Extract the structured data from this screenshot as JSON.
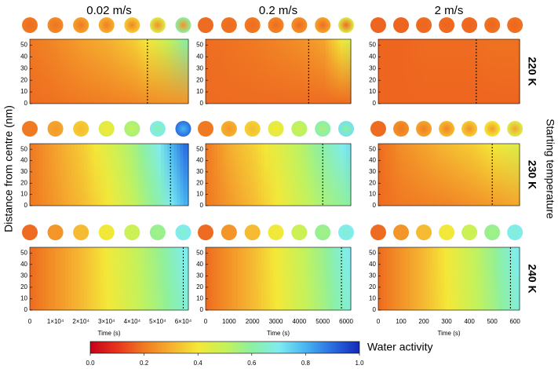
{
  "chart_data": {
    "type": "heatmap_grid",
    "y_label": "Distance from centre (nm)",
    "row_axis_label": "Starting temperature",
    "ylim": [
      0,
      55
    ],
    "yticks": [
      0,
      10,
      20,
      30,
      40,
      50
    ],
    "colorbar": {
      "label": "Water activity",
      "lim": [
        0,
        1
      ],
      "colormap": [
        "#c4001a",
        "#e8341c",
        "#f07a22",
        "#f5b030",
        "#f4e838",
        "#c4f25a",
        "#8cf0a0",
        "#80ecf0",
        "#48b4f0",
        "#2a6ce0",
        "#1428b8"
      ],
      "ticks": [
        {
          "value": 0,
          "label": "0.0"
        },
        {
          "value": 0.2,
          "label": "0.2"
        },
        {
          "value": 0.4,
          "label": "0.4"
        },
        {
          "value": 0.6,
          "label": "0.6"
        },
        {
          "value": 0.8,
          "label": "0.8"
        },
        {
          "value": 1,
          "label": "1.0"
        }
      ]
    },
    "columns": [
      {
        "title": "0.02 m/s",
        "xlabel": "Time (s)",
        "xlim": [
          0,
          62000
        ],
        "xticks": [
          0,
          {
            "value": 10000,
            "label": "1×10⁴"
          },
          {
            "value": 20000,
            "label": "2×10⁴"
          },
          {
            "value": 30000,
            "label": "3×10⁴"
          },
          {
            "value": 40000,
            "label": "4×10⁴"
          },
          {
            "value": 50000,
            "label": "5×10⁴"
          },
          {
            "value": 60000,
            "label": "6×10⁴"
          }
        ]
      },
      {
        "title": "0.2 m/s",
        "xlabel": "Time (s)",
        "xlim": [
          0,
          6200
        ],
        "xticks": [
          0,
          1000,
          2000,
          3000,
          4000,
          5000,
          6000
        ]
      },
      {
        "title": "2 m/s",
        "xlabel": "Time (s)",
        "xlim": [
          0,
          620
        ],
        "xticks": [
          0,
          100,
          200,
          300,
          400,
          500,
          600
        ]
      }
    ],
    "rows": [
      {
        "label": "220 K",
        "panels": [
          {
            "centre": [
              0.18,
              0.19,
              0.2,
              0.21,
              0.22,
              0.24,
              0.25
            ],
            "surface": [
              0.2,
              0.23,
              0.27,
              0.3,
              0.35,
              0.45,
              0.6
            ],
            "dashed_x": 46000
          },
          {
            "centre": [
              0.18,
              0.18,
              0.18,
              0.18,
              0.18,
              0.18,
              0.18
            ],
            "surface": [
              0.18,
              0.19,
              0.2,
              0.22,
              0.24,
              0.28,
              0.45
            ],
            "dashed_x": 4400
          },
          {
            "centre": [
              0.17,
              0.17,
              0.17,
              0.17,
              0.17,
              0.17,
              0.17
            ],
            "surface": [
              0.17,
              0.17,
              0.18,
              0.18,
              0.18,
              0.19,
              0.19
            ],
            "dashed_x": 430
          }
        ]
      },
      {
        "label": "230 K",
        "panels": [
          {
            "centre": [
              0.2,
              0.26,
              0.32,
              0.4,
              0.5,
              0.62,
              0.8
            ],
            "surface": [
              0.2,
              0.28,
              0.35,
              0.45,
              0.55,
              0.7,
              0.9
            ],
            "dashed_x": 55000
          },
          {
            "centre": [
              0.2,
              0.26,
              0.32,
              0.4,
              0.48,
              0.55,
              0.6
            ],
            "surface": [
              0.2,
              0.3,
              0.36,
              0.44,
              0.52,
              0.62,
              0.72
            ],
            "dashed_x": 5000
          },
          {
            "centre": [
              0.18,
              0.2,
              0.21,
              0.22,
              0.24,
              0.26,
              0.28
            ],
            "surface": [
              0.18,
              0.24,
              0.28,
              0.32,
              0.35,
              0.4,
              0.45
            ],
            "dashed_x": 500
          }
        ]
      },
      {
        "label": "240 K",
        "panels": [
          {
            "centre": [
              0.18,
              0.25,
              0.32,
              0.4,
              0.48,
              0.56,
              0.66
            ],
            "surface": [
              0.18,
              0.25,
              0.32,
              0.41,
              0.49,
              0.58,
              0.7
            ],
            "dashed_x": 60000
          },
          {
            "centre": [
              0.18,
              0.25,
              0.32,
              0.4,
              0.48,
              0.56,
              0.66
            ],
            "surface": [
              0.18,
              0.25,
              0.32,
              0.41,
              0.49,
              0.58,
              0.7
            ],
            "dashed_x": 5800
          },
          {
            "centre": [
              0.18,
              0.25,
              0.32,
              0.4,
              0.48,
              0.56,
              0.66
            ],
            "surface": [
              0.18,
              0.25,
              0.32,
              0.41,
              0.49,
              0.58,
              0.7
            ],
            "dashed_x": 580
          }
        ]
      }
    ]
  }
}
